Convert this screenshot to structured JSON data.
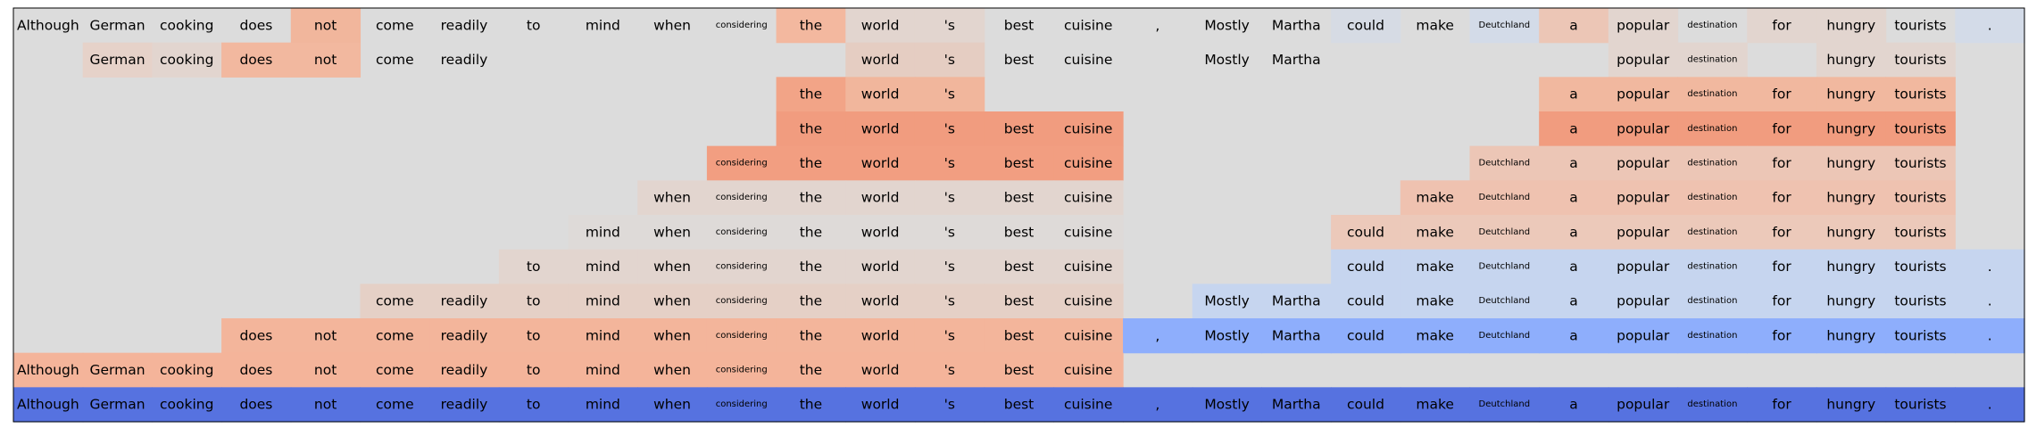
{
  "chart_data": {
    "type": "heatmap",
    "columns": [
      "Although",
      "German",
      "cooking",
      "does",
      "not",
      "come",
      "readily",
      "to",
      "mind",
      "when",
      "considering",
      "the",
      "world",
      "'s",
      "best",
      "cuisine",
      ",",
      "Mostly",
      "Martha",
      "could",
      "make",
      "Deutchland",
      "a",
      "popular",
      "destination",
      "for",
      "hungry",
      "tourists",
      "."
    ],
    "small_label_columns": [
      10,
      21,
      24
    ],
    "rows": [
      {
        "text": [
          0,
          1,
          2,
          3,
          4,
          5,
          6,
          7,
          8,
          9,
          10,
          11,
          12,
          13,
          14,
          15,
          16,
          17,
          18,
          19,
          20,
          21,
          22,
          23,
          24,
          25,
          26,
          27,
          28
        ],
        "shade": [
          "#dcdcdc",
          "#dcdcdc",
          "#dcdcdc",
          "#dcdcdc",
          "#f1b69c",
          "#dcdcdc",
          "#dcdcdc",
          "#dcdcdc",
          "#dcdcdc",
          "#dcdcdc",
          "#dcdcdc",
          "#f3b89f",
          "#e2d5cf",
          "#e2d5cf",
          "#dcdcdc",
          "#dcdcdc",
          "#dcdcdc",
          "#dcdcdc",
          "#dcdcdc",
          "#d6dbe4",
          "#dcdcdc",
          "#d3dbe8",
          "#ecc6b6",
          "#e2d5cf",
          "#dcdcdc",
          "#e2d5cf",
          "#e2d5cf",
          "#dcdcdc",
          "#d3dbe8"
        ]
      },
      {
        "text": [
          1,
          2,
          3,
          4,
          5,
          6,
          12,
          13,
          14,
          15,
          17,
          18,
          23,
          24,
          26,
          27
        ],
        "shade": [
          "#dcdcdc",
          "#e6d2c9",
          "#e2d5cf",
          "#f2b89f",
          "#f2b89f",
          "#dcdcdc",
          "#dcdcdc",
          "#dcdcdc",
          "#dcdcdc",
          "#dcdcdc",
          "#dcdcdc",
          "#dcdcdc",
          "#e5cdc2",
          "#e5cdc2",
          "#dcdcdc",
          "#dcdcdc",
          "#dcdcdc",
          "#dcdcdc",
          "#dcdcdc",
          "#dcdcdc",
          "#dcdcdc",
          "#dcdcdc",
          "#dcdcdc",
          "#e2d5cf",
          "#e2d5cf",
          "#dcdcdc",
          "#e2d5cf",
          "#e2d5cf",
          "#dcdcdc"
        ]
      },
      {
        "text": [
          11,
          12,
          13,
          22,
          23,
          24,
          25,
          26,
          27
        ],
        "shade": [
          "#dcdcdc",
          "#dcdcdc",
          "#dcdcdc",
          "#dcdcdc",
          "#dcdcdc",
          "#dcdcdc",
          "#dcdcdc",
          "#dcdcdc",
          "#dcdcdc",
          "#dcdcdc",
          "#dcdcdc",
          "#f2a487",
          "#f1b69c",
          "#f1b69c",
          "#dcdcdc",
          "#dcdcdc",
          "#dcdcdc",
          "#dcdcdc",
          "#dcdcdc",
          "#dcdcdc",
          "#dcdcdc",
          "#dcdcdc",
          "#f1b89f",
          "#f1b89f",
          "#f1b89f",
          "#f1b89f",
          "#f1b89f",
          "#f1b89f",
          "#dcdcdc"
        ]
      },
      {
        "text": [
          11,
          12,
          13,
          14,
          15,
          22,
          23,
          24,
          25,
          26,
          27
        ],
        "shade": [
          "#dcdcdc",
          "#dcdcdc",
          "#dcdcdc",
          "#dcdcdc",
          "#dcdcdc",
          "#dcdcdc",
          "#dcdcdc",
          "#dcdcdc",
          "#dcdcdc",
          "#dcdcdc",
          "#dcdcdc",
          "#f19c7f",
          "#f19c7f",
          "#f19c7f",
          "#f19c7f",
          "#f19c7f",
          "#dcdcdc",
          "#dcdcdc",
          "#dcdcdc",
          "#dcdcdc",
          "#dcdcdc",
          "#dcdcdc",
          "#f19c7f",
          "#f19c7f",
          "#f19c7f",
          "#f19c7f",
          "#f19c7f",
          "#f19c7f",
          "#dcdcdc"
        ]
      },
      {
        "text": [
          10,
          11,
          12,
          13,
          14,
          15,
          21,
          22,
          23,
          24,
          25,
          26,
          27
        ],
        "shade": [
          "#dcdcdc",
          "#dcdcdc",
          "#dcdcdc",
          "#dcdcdc",
          "#dcdcdc",
          "#dcdcdc",
          "#dcdcdc",
          "#dcdcdc",
          "#dcdcdc",
          "#dcdcdc",
          "#f29e81",
          "#f29e81",
          "#f29e81",
          "#f29e81",
          "#f29e81",
          "#f29e81",
          "#dcdcdc",
          "#dcdcdc",
          "#dcdcdc",
          "#dcdcdc",
          "#dcdcdc",
          "#ecc6b6",
          "#ecc6b6",
          "#ecc6b6",
          "#ecc6b6",
          "#ecc6b6",
          "#ecc6b6",
          "#ecc6b6",
          "#dcdcdc"
        ]
      },
      {
        "text": [
          9,
          10,
          11,
          12,
          13,
          14,
          15,
          20,
          21,
          22,
          23,
          24,
          25,
          26,
          27
        ],
        "shade": [
          "#dcdcdc",
          "#dcdcdc",
          "#dcdcdc",
          "#dcdcdc",
          "#dcdcdc",
          "#dcdcdc",
          "#dcdcdc",
          "#dcdcdc",
          "#dcdcdc",
          "#e2d5cf",
          "#e2d5cf",
          "#e2d5cf",
          "#e2d5cf",
          "#e2d5cf",
          "#e2d5cf",
          "#e2d5cf",
          "#dcdcdc",
          "#dcdcdc",
          "#dcdcdc",
          "#dcdcdc",
          "#efc2b0",
          "#efc2b0",
          "#efc2b0",
          "#efc2b0",
          "#efc2b0",
          "#efc2b0",
          "#efc2b0",
          "#efc2b0",
          "#dcdcdc"
        ]
      },
      {
        "text": [
          8,
          9,
          10,
          11,
          12,
          13,
          14,
          15,
          19,
          20,
          21,
          22,
          23,
          24,
          25,
          26,
          27
        ],
        "shade": [
          "#dcdcdc",
          "#dcdcdc",
          "#dcdcdc",
          "#dcdcdc",
          "#dcdcdc",
          "#dcdcdc",
          "#dcdcdc",
          "#dcdcdc",
          "#dedad8",
          "#dedad8",
          "#dedad8",
          "#dedad8",
          "#dedad8",
          "#dedad8",
          "#dedad8",
          "#dedad8",
          "#dcdcdc",
          "#dcdcdc",
          "#dcdcdc",
          "#ecc9ba",
          "#ecc9ba",
          "#ecc9ba",
          "#ecc9ba",
          "#ecc9ba",
          "#ecc9ba",
          "#ecc9ba",
          "#ecc9ba",
          "#ecc9ba",
          "#dcdcdc"
        ]
      },
      {
        "text": [
          7,
          8,
          9,
          10,
          11,
          12,
          13,
          14,
          15,
          19,
          20,
          21,
          22,
          23,
          24,
          25,
          26,
          27,
          28
        ],
        "shade": [
          "#dcdcdc",
          "#dcdcdc",
          "#dcdcdc",
          "#dcdcdc",
          "#dcdcdc",
          "#dcdcdc",
          "#dcdcdc",
          "#e2d5cf",
          "#e2d5cf",
          "#e2d5cf",
          "#e2d5cf",
          "#e2d5cf",
          "#e2d5cf",
          "#e2d5cf",
          "#e2d5cf",
          "#e2d5cf",
          "#dcdcdc",
          "#dcdcdc",
          "#dcdcdc",
          "#c6d5ef",
          "#c6d5ef",
          "#c6d5ef",
          "#c6d5ef",
          "#c6d5ef",
          "#c6d5ef",
          "#c6d5ef",
          "#c6d5ef",
          "#c6d5ef",
          "#c6d5ef"
        ]
      },
      {
        "text": [
          5,
          6,
          7,
          8,
          9,
          10,
          11,
          12,
          13,
          14,
          15,
          17,
          18,
          19,
          20,
          21,
          22,
          23,
          24,
          25,
          26,
          27,
          28
        ],
        "shade": [
          "#dcdcdc",
          "#dcdcdc",
          "#dcdcdc",
          "#dcdcdc",
          "#dcdcdc",
          "#e5d0c6",
          "#e5d0c6",
          "#e5d0c6",
          "#e5d0c6",
          "#e5d0c6",
          "#e5d0c6",
          "#e5d0c6",
          "#e5d0c6",
          "#e5d0c6",
          "#e5d0c6",
          "#e5d0c6",
          "#dcdcdc",
          "#c6d5ef",
          "#c6d5ef",
          "#c6d5ef",
          "#c6d5ef",
          "#c6d5ef",
          "#c6d5ef",
          "#c6d5ef",
          "#c6d5ef",
          "#c6d5ef",
          "#c6d5ef",
          "#c6d5ef",
          "#c6d5ef"
        ]
      },
      {
        "text": [
          3,
          4,
          5,
          6,
          7,
          8,
          9,
          10,
          11,
          12,
          13,
          14,
          15,
          16,
          17,
          18,
          19,
          20,
          21,
          22,
          23,
          24,
          25,
          26,
          27,
          28
        ],
        "shade": [
          "#dcdcdc",
          "#dcdcdc",
          "#dcdcdc",
          "#f3b59b",
          "#f3b59b",
          "#f3b59b",
          "#f3b59b",
          "#f3b59b",
          "#f3b59b",
          "#f3b59b",
          "#f3b59b",
          "#f3b59b",
          "#f3b59b",
          "#f3b59b",
          "#f3b59b",
          "#f3b59b",
          "#8eaefc",
          "#8eaefc",
          "#8eaefc",
          "#8eaefc",
          "#8eaefc",
          "#8eaefc",
          "#8eaefc",
          "#8eaefc",
          "#8eaefc",
          "#8eaefc",
          "#8eaefc",
          "#8eaefc",
          "#8eaefc"
        ]
      },
      {
        "text": [
          0,
          1,
          2,
          3,
          4,
          5,
          6,
          7,
          8,
          9,
          10,
          11,
          12,
          13,
          14,
          15
        ],
        "shade": [
          "#f4b49a",
          "#f4b49a",
          "#f4b49a",
          "#f4b49a",
          "#f4b49a",
          "#f4b49a",
          "#f4b49a",
          "#f4b49a",
          "#f4b49a",
          "#f4b49a",
          "#f4b49a",
          "#f4b49a",
          "#f4b49a",
          "#f4b49a",
          "#f4b49a",
          "#f4b49a",
          "#dcdcdc",
          "#dcdcdc",
          "#dcdcdc",
          "#dcdcdc",
          "#dcdcdc",
          "#dcdcdc",
          "#dcdcdc",
          "#dcdcdc",
          "#dcdcdc",
          "#dcdcdc",
          "#dcdcdc",
          "#dcdcdc",
          "#dcdcdc"
        ]
      },
      {
        "text": [
          0,
          1,
          2,
          3,
          4,
          5,
          6,
          7,
          8,
          9,
          10,
          11,
          12,
          13,
          14,
          15,
          16,
          17,
          18,
          19,
          20,
          21,
          22,
          23,
          24,
          25,
          26,
          27,
          28
        ],
        "shade": [
          "#5672e0",
          "#5672e0",
          "#5672e0",
          "#5672e0",
          "#5672e0",
          "#5672e0",
          "#5672e0",
          "#5672e0",
          "#5672e0",
          "#5672e0",
          "#5672e0",
          "#5672e0",
          "#5672e0",
          "#5672e0",
          "#5672e0",
          "#5672e0",
          "#5672e0",
          "#5672e0",
          "#5672e0",
          "#5672e0",
          "#5672e0",
          "#5672e0",
          "#5672e0",
          "#5672e0",
          "#5672e0",
          "#5672e0",
          "#5672e0",
          "#5672e0",
          "#5672e0"
        ]
      }
    ],
    "background_color": "#dcdcdc",
    "border_color": "#000000",
    "colormap": "coolwarm",
    "grid": false,
    "legend": "none"
  }
}
